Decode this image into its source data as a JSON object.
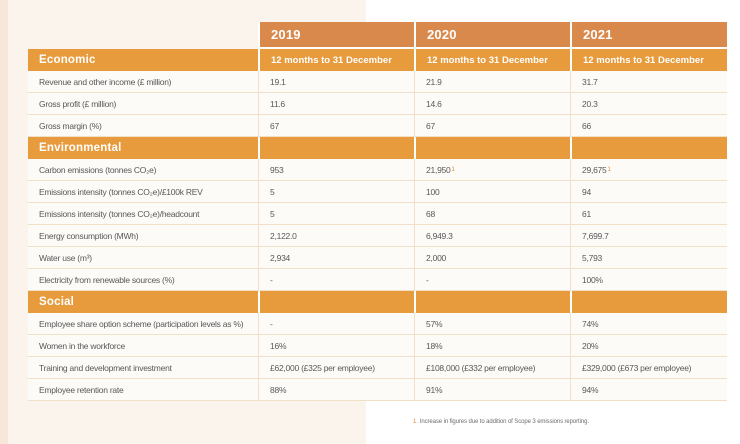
{
  "colors": {
    "year_header_orange": "#d8894b",
    "section_header_orange": "#e89b3c",
    "row_border_tan": "#f2dfc7",
    "footnote_marker_orange": "#e0873c",
    "body_text_gray": "#58585a",
    "left_panel_cream": "#faf4ec"
  },
  "table": {
    "year_columns": [
      {
        "year": "2019",
        "period": "12 months to 31 December"
      },
      {
        "year": "2020",
        "period": "12 months to 31 December"
      },
      {
        "year": "2021",
        "period": "12 months to 31 December"
      }
    ],
    "sections": [
      {
        "label": "Economic",
        "rows": [
          {
            "label": "Revenue and other income (£ million)",
            "values": [
              "19.1",
              "21.9",
              "31.7"
            ]
          },
          {
            "label": "Gross profit (£ million)",
            "values": [
              "11.6",
              "14.6",
              "20.3"
            ]
          },
          {
            "label": "Gross margin (%)",
            "values": [
              "67",
              "67",
              "66"
            ]
          }
        ]
      },
      {
        "label": "Environmental",
        "rows": [
          {
            "label": "Carbon emissions (tonnes CO₂e)",
            "values": [
              "953",
              "21,950¹",
              "29,675¹"
            ]
          },
          {
            "label": "Emissions intensity (tonnes CO₂e)/£100k REV",
            "values": [
              "5",
              "100",
              "94"
            ]
          },
          {
            "label": "Emissions intensity (tonnes CO₂e)/headcount",
            "values": [
              "5",
              "68",
              "61"
            ]
          },
          {
            "label": "Energy consumption (MWh)",
            "values": [
              "2,122.0",
              "6,949.3",
              "7,699.7"
            ]
          },
          {
            "label": "Water use (m³)",
            "values": [
              "2,934",
              "2,000",
              "5,793"
            ]
          },
          {
            "label": "Electricity from renewable sources (%)",
            "values": [
              "-",
              "-",
              "100%"
            ]
          }
        ]
      },
      {
        "label": "Social",
        "rows": [
          {
            "label": "Employee share option scheme (participation levels as %)",
            "values": [
              "-",
              "57%",
              "74%"
            ]
          },
          {
            "label": "Women in the workforce",
            "values": [
              "16%",
              "18%",
              "20%"
            ]
          },
          {
            "label": "Training and development investment",
            "values": [
              "£62,000 (£325 per employee)",
              "£108,000 (£332 per employee)",
              "£329,000 (£673 per employee)"
            ]
          },
          {
            "label": "Employee retention rate",
            "values": [
              "88%",
              "91%",
              "94%"
            ]
          }
        ]
      }
    ]
  },
  "footnote": {
    "marker": "1.",
    "text": "Increase in figures due to addition of Scope 3 emissions reporting."
  }
}
